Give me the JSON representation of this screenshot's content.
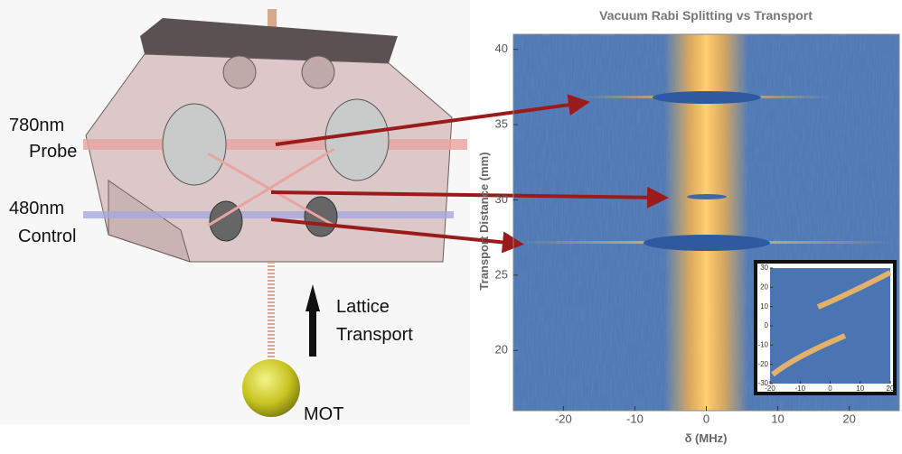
{
  "labels": {
    "probe": [
      "780nm",
      "Probe"
    ],
    "control": [
      "480nm",
      "Control"
    ],
    "transport": [
      "Lattice",
      "Transport"
    ],
    "mot": "MOT"
  },
  "chart_data": [
    {
      "type": "heatmap",
      "title": "Vacuum Rabi Splitting vs Transport",
      "x_label": "δ (MHz)",
      "y_label": "Transport Distance (mm)",
      "xlim": [
        -27,
        27
      ],
      "xticks": [
        -20,
        -10,
        0,
        10,
        20
      ],
      "ylim": [
        16,
        41
      ],
      "yticks": [
        20,
        25,
        30,
        35,
        40
      ]
    },
    {
      "type": "heatmap",
      "xlim": [
        -20,
        20
      ],
      "xticks": [
        -20,
        -10,
        0,
        10,
        20
      ],
      "ylim": [
        -30,
        30
      ],
      "yticks": [
        -30,
        -20,
        -10,
        0,
        10,
        20,
        30
      ]
    }
  ]
}
